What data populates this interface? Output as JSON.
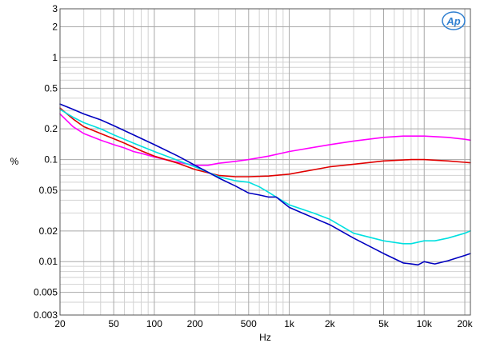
{
  "chart_data": {
    "type": "line",
    "title": "",
    "xlabel": "Hz",
    "ylabel": "%",
    "x_scale": "log",
    "y_scale": "log",
    "xlim": [
      20,
      22000
    ],
    "ylim": [
      0.003,
      3
    ],
    "grid": true,
    "logo": "Ap",
    "x_ticks": [
      {
        "value": 20,
        "label": "20"
      },
      {
        "value": 50,
        "label": "50"
      },
      {
        "value": 100,
        "label": "100"
      },
      {
        "value": 200,
        "label": "200"
      },
      {
        "value": 500,
        "label": "500"
      },
      {
        "value": 1000,
        "label": "1k"
      },
      {
        "value": 2000,
        "label": "2k"
      },
      {
        "value": 5000,
        "label": "5k"
      },
      {
        "value": 10000,
        "label": "10k"
      },
      {
        "value": 20000,
        "label": "20k"
      }
    ],
    "y_ticks": [
      {
        "value": 3,
        "label": "3"
      },
      {
        "value": 2,
        "label": "2"
      },
      {
        "value": 1,
        "label": "1"
      },
      {
        "value": 0.5,
        "label": "0.5"
      },
      {
        "value": 0.2,
        "label": "0.2"
      },
      {
        "value": 0.1,
        "label": "0.1"
      },
      {
        "value": 0.05,
        "label": "0.05"
      },
      {
        "value": 0.02,
        "label": "0.02"
      },
      {
        "value": 0.01,
        "label": "0.01"
      },
      {
        "value": 0.005,
        "label": "0.005"
      },
      {
        "value": 0.003,
        "label": "0.003"
      }
    ],
    "series": [
      {
        "color": "#ff00ff",
        "x": [
          20,
          25,
          30,
          40,
          50,
          60,
          70,
          80,
          100,
          120,
          150,
          200,
          250,
          300,
          400,
          500,
          700,
          1000,
          2000,
          3000,
          5000,
          7000,
          10000,
          15000,
          20000,
          22000
        ],
        "y": [
          0.28,
          0.21,
          0.18,
          0.155,
          0.14,
          0.13,
          0.12,
          0.115,
          0.106,
          0.1,
          0.094,
          0.088,
          0.088,
          0.092,
          0.096,
          0.1,
          0.108,
          0.12,
          0.14,
          0.152,
          0.165,
          0.17,
          0.17,
          0.165,
          0.158,
          0.155
        ]
      },
      {
        "color": "#e00000",
        "x": [
          20,
          25,
          30,
          40,
          50,
          60,
          80,
          100,
          150,
          200,
          300,
          400,
          500,
          700,
          1000,
          2000,
          3000,
          5000,
          8000,
          10000,
          15000,
          20000,
          22000
        ],
        "y": [
          0.32,
          0.25,
          0.21,
          0.18,
          0.16,
          0.145,
          0.122,
          0.108,
          0.092,
          0.08,
          0.07,
          0.068,
          0.068,
          0.069,
          0.072,
          0.085,
          0.09,
          0.097,
          0.1,
          0.1,
          0.097,
          0.094,
          0.093
        ]
      },
      {
        "color": "#00e0e0",
        "x": [
          20,
          25,
          30,
          40,
          50,
          70,
          100,
          150,
          200,
          300,
          400,
          500,
          600,
          700,
          800,
          1000,
          1500,
          2000,
          3000,
          5000,
          7000,
          8000,
          10000,
          12000,
          15000,
          20000,
          22000
        ],
        "y": [
          0.31,
          0.26,
          0.23,
          0.2,
          0.175,
          0.145,
          0.12,
          0.098,
          0.085,
          0.068,
          0.062,
          0.06,
          0.054,
          0.048,
          0.043,
          0.036,
          0.03,
          0.026,
          0.019,
          0.016,
          0.015,
          0.015,
          0.016,
          0.016,
          0.017,
          0.019,
          0.02
        ]
      },
      {
        "color": "#0000c0",
        "x": [
          20,
          25,
          30,
          40,
          50,
          70,
          100,
          150,
          200,
          300,
          400,
          500,
          600,
          700,
          800,
          1000,
          1500,
          2000,
          3000,
          5000,
          7000,
          8000,
          9000,
          10000,
          11000,
          12000,
          15000,
          20000,
          22000
        ],
        "y": [
          0.35,
          0.31,
          0.28,
          0.245,
          0.215,
          0.175,
          0.14,
          0.108,
          0.088,
          0.066,
          0.055,
          0.047,
          0.045,
          0.043,
          0.043,
          0.034,
          0.027,
          0.023,
          0.017,
          0.012,
          0.0097,
          0.0095,
          0.0093,
          0.01,
          0.0097,
          0.0095,
          0.0102,
          0.0115,
          0.012
        ]
      }
    ]
  }
}
